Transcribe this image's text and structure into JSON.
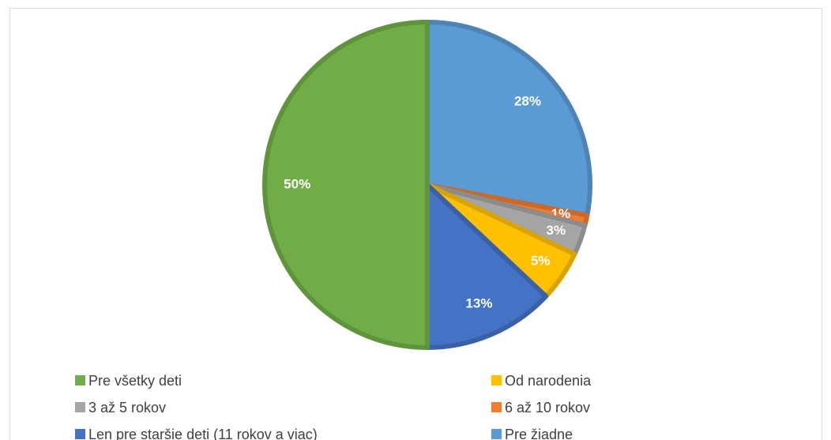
{
  "chart_data": {
    "type": "pie",
    "categories": [
      "Pre žiadne",
      "6 až 10 rokov",
      "3 až 5 rokov",
      "Od narodenia",
      "Len pre staršie deti (11 rokov a viac)",
      "Pre všetky deti"
    ],
    "values": [
      28,
      1,
      3,
      5,
      13,
      50
    ],
    "value_labels": [
      "28%",
      "1%",
      "3%",
      "5%",
      "13%",
      "50%"
    ],
    "colors": [
      "#5b9bd5",
      "#ed7d31",
      "#a5a5a5",
      "#ffc000",
      "#4472c4",
      "#70ad47"
    ],
    "legend": "bottom"
  }
}
